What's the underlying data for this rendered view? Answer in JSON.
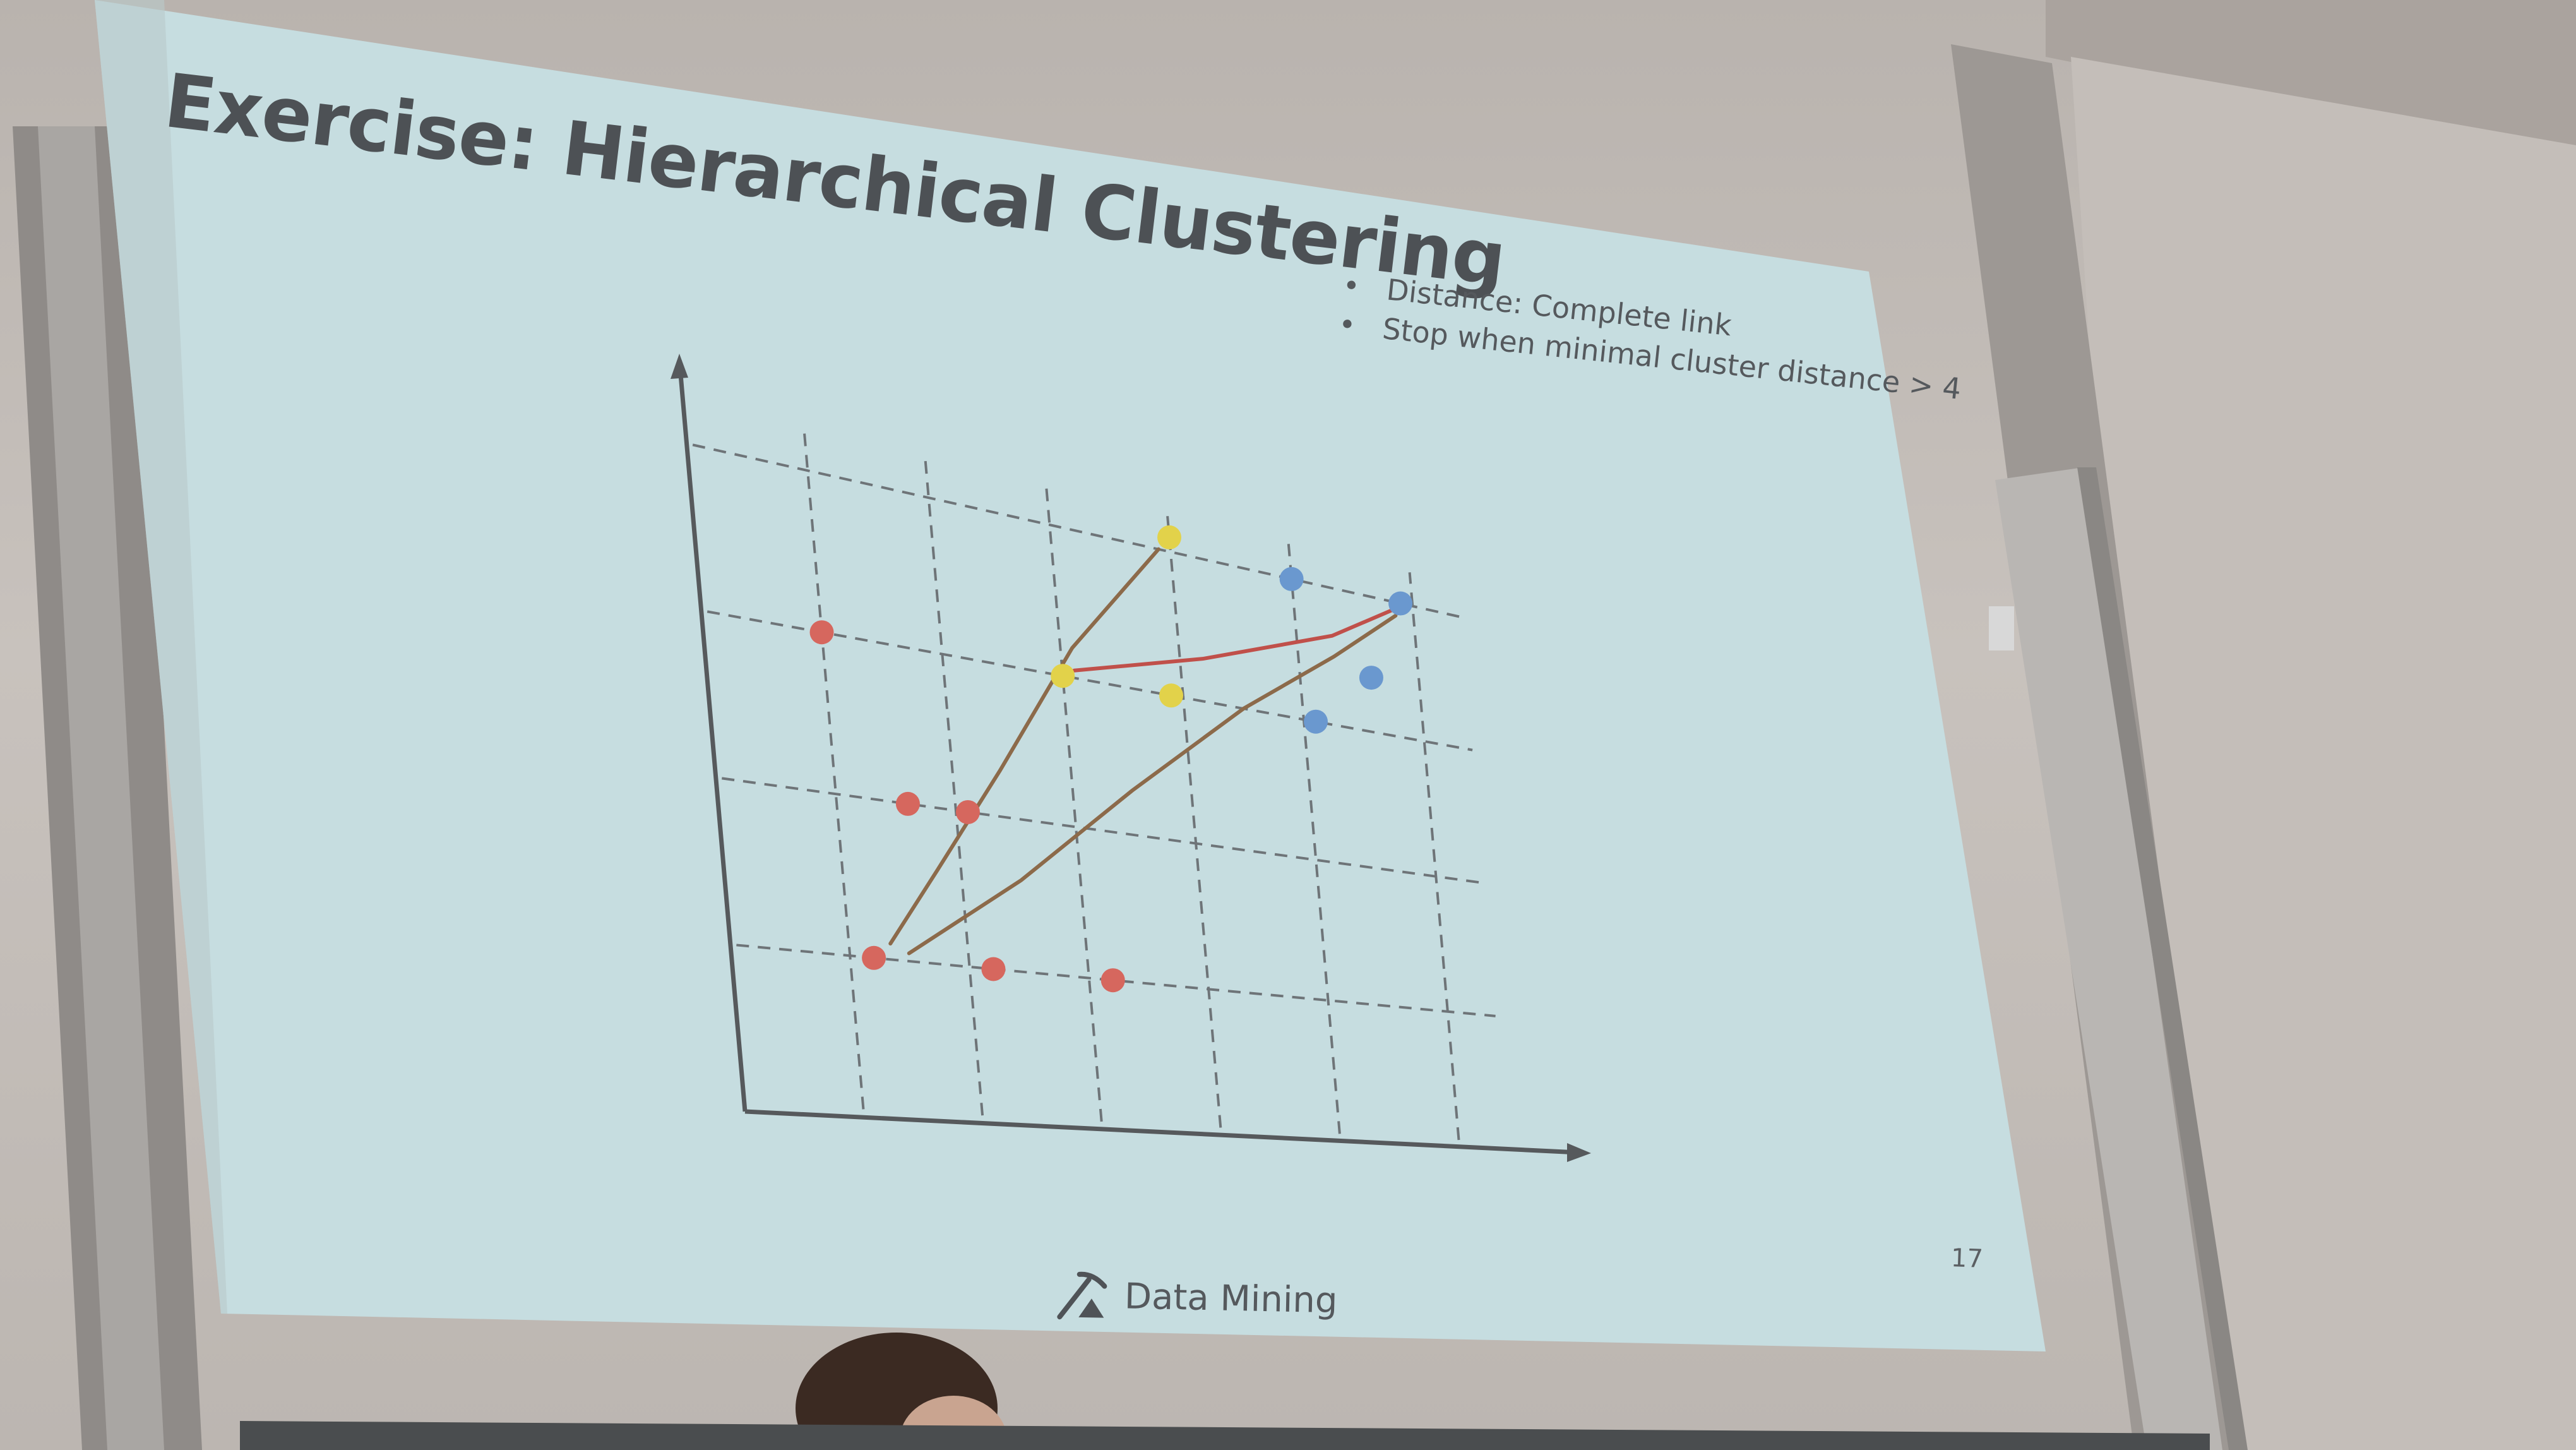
{
  "slide": {
    "title": "Exercise: Hierarchical Clustering",
    "bullets": [
      "Distance: Complete link",
      "Stop when minimal cluster distance > 4"
    ],
    "footer": "Data Mining",
    "page_number": "17",
    "logo_icon": "pickaxe-logo-icon"
  },
  "colors": {
    "slide_bg": "#c6dde0",
    "red_point": "#d6675e",
    "yellow_point": "#e2d24a",
    "blue_point": "#6a98cf",
    "ink_red": "#c0504a",
    "ink_brown": "#8c6a4a"
  },
  "chart_data": {
    "type": "scatter",
    "grid": true,
    "grid_style": "dashed",
    "x_grid": [
      1,
      2,
      3,
      4,
      5,
      6
    ],
    "y_grid": [
      1,
      2,
      3,
      4
    ],
    "xlim": [
      0,
      7
    ],
    "ylim": [
      0,
      4.5
    ],
    "series": [
      {
        "color": "red",
        "points": [
          [
            1,
            3
          ],
          [
            1.6,
            2
          ],
          [
            2.1,
            2
          ],
          [
            1.2,
            1
          ],
          [
            2.2,
            1
          ],
          [
            3.2,
            1
          ]
        ]
      },
      {
        "color": "yellow",
        "points": [
          [
            3,
            3
          ],
          [
            3.9,
            3
          ],
          [
            4,
            4.1
          ]
        ]
      },
      {
        "color": "blue",
        "points": [
          [
            5,
            4
          ],
          [
            5.9,
            4
          ],
          [
            5.6,
            3.4
          ],
          [
            5.1,
            3
          ]
        ]
      }
    ]
  }
}
